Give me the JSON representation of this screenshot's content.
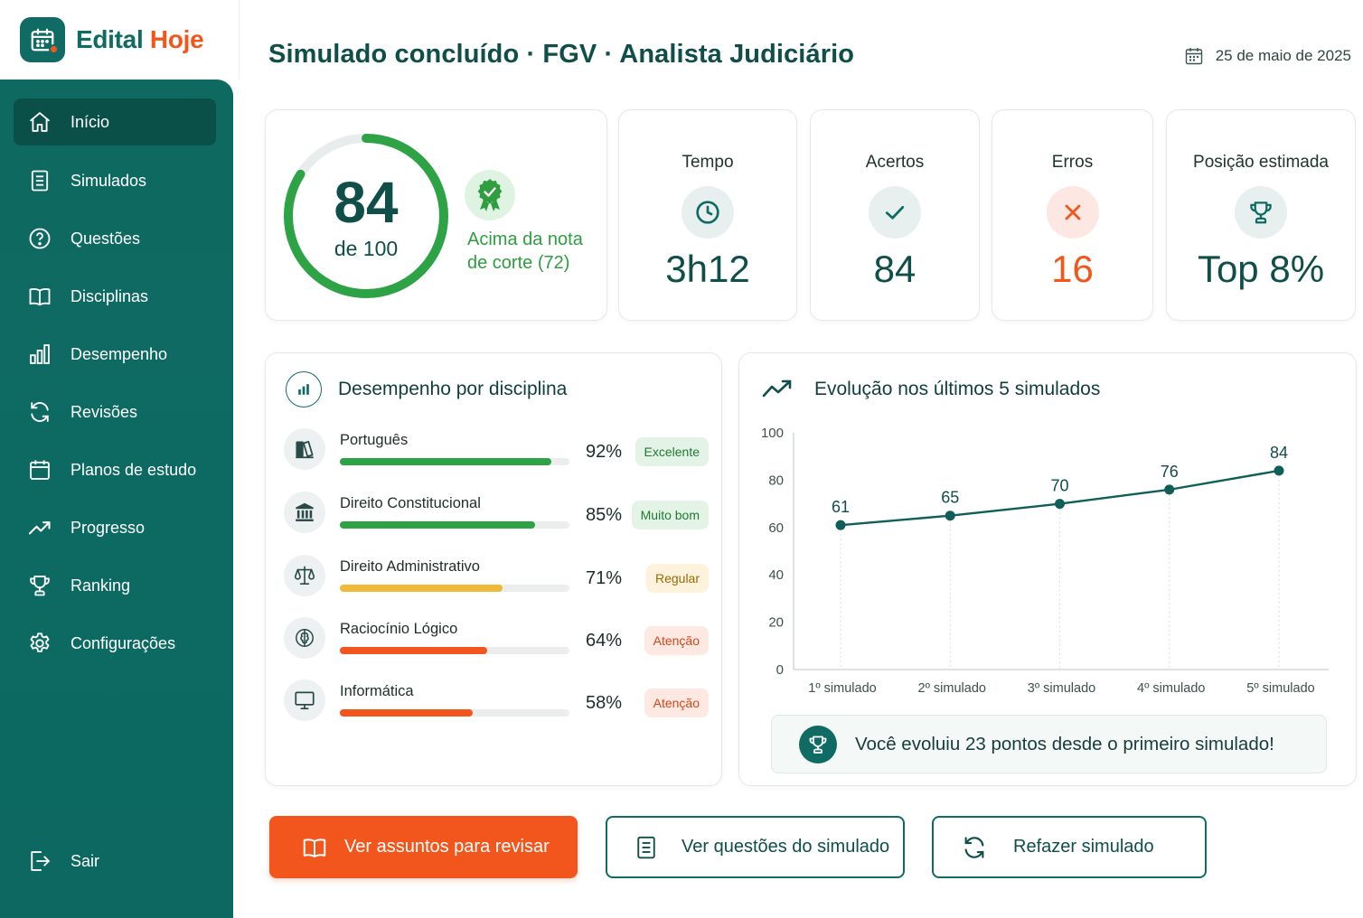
{
  "brand": {
    "name_part1": "Edital",
    "name_part2": "Hoje"
  },
  "sidebar": {
    "items": [
      {
        "label": "Início",
        "icon": "home-icon",
        "active": true
      },
      {
        "label": "Simulados",
        "icon": "document-icon"
      },
      {
        "label": "Questões",
        "icon": "question-icon"
      },
      {
        "label": "Disciplinas",
        "icon": "book-icon"
      },
      {
        "label": "Desempenho",
        "icon": "bar-chart-icon"
      },
      {
        "label": "Revisões",
        "icon": "refresh-icon"
      },
      {
        "label": "Planos de estudo",
        "icon": "calendar-icon"
      },
      {
        "label": "Progresso",
        "icon": "trend-icon"
      },
      {
        "label": "Ranking",
        "icon": "trophy-icon"
      },
      {
        "label": "Configurações",
        "icon": "gear-icon"
      }
    ],
    "logout": {
      "label": "Sair",
      "icon": "logout-icon"
    }
  },
  "header": {
    "title": "Simulado concluído · FGV · Analista Judiciário",
    "date": "25 de maio de 2025"
  },
  "score": {
    "value": "84",
    "of": "de 100",
    "fraction": 0.84,
    "cutoff_text": "Acima da nota de corte (72)"
  },
  "stats": [
    {
      "title": "Tempo",
      "value": "3h12",
      "icon": "clock-icon"
    },
    {
      "title": "Acertos",
      "value": "84",
      "icon": "check-icon"
    },
    {
      "title": "Erros",
      "value": "16",
      "icon": "x-icon"
    },
    {
      "title": "Posição estimada",
      "value": "Top 8%",
      "icon": "trophy-icon"
    }
  ],
  "disciplines": {
    "title": "Desempenho por disciplina",
    "items": [
      {
        "name": "Português",
        "pct_label": "92%",
        "pct": 92,
        "status": "Excelente",
        "icon": "book-icon"
      },
      {
        "name": "Direito Constitucional",
        "pct_label": "85%",
        "pct": 85,
        "status": "Muito bom",
        "icon": "courthouse-icon"
      },
      {
        "name": "Direito Administrativo",
        "pct_label": "71%",
        "pct": 71,
        "status": "Regular",
        "icon": "scales-icon"
      },
      {
        "name": "Raciocínio Lógico",
        "pct_label": "64%",
        "pct": 64,
        "status": "Atenção",
        "icon": "brain-icon"
      },
      {
        "name": "Informática",
        "pct_label": "58%",
        "pct": 58,
        "status": "Atenção",
        "icon": "monitor-icon"
      }
    ]
  },
  "evolution": {
    "title": "Evolução nos últimos 5 simulados",
    "banner": "Você evoluiu 23 pontos desde o primeiro simulado!"
  },
  "chart_data": {
    "type": "line",
    "title": "Evolução nos últimos 5 simulados",
    "categories": [
      "1º simulado",
      "2º simulado",
      "3º simulado",
      "4º simulado",
      "5º simulado"
    ],
    "values": [
      61,
      65,
      70,
      76,
      84
    ],
    "ylim": [
      0,
      100
    ],
    "yticks": [
      0,
      20,
      40,
      60,
      80,
      100
    ],
    "grid": false
  },
  "actions": {
    "review": "Ver assuntos para revisar",
    "questions": "Ver questões do simulado",
    "redo": "Refazer simulado"
  },
  "colors": {
    "primary": "#0f6b63",
    "accent": "#f2561d",
    "success": "#2e9e3f",
    "warning": "#f0b93a",
    "danger": "#f2561d"
  }
}
